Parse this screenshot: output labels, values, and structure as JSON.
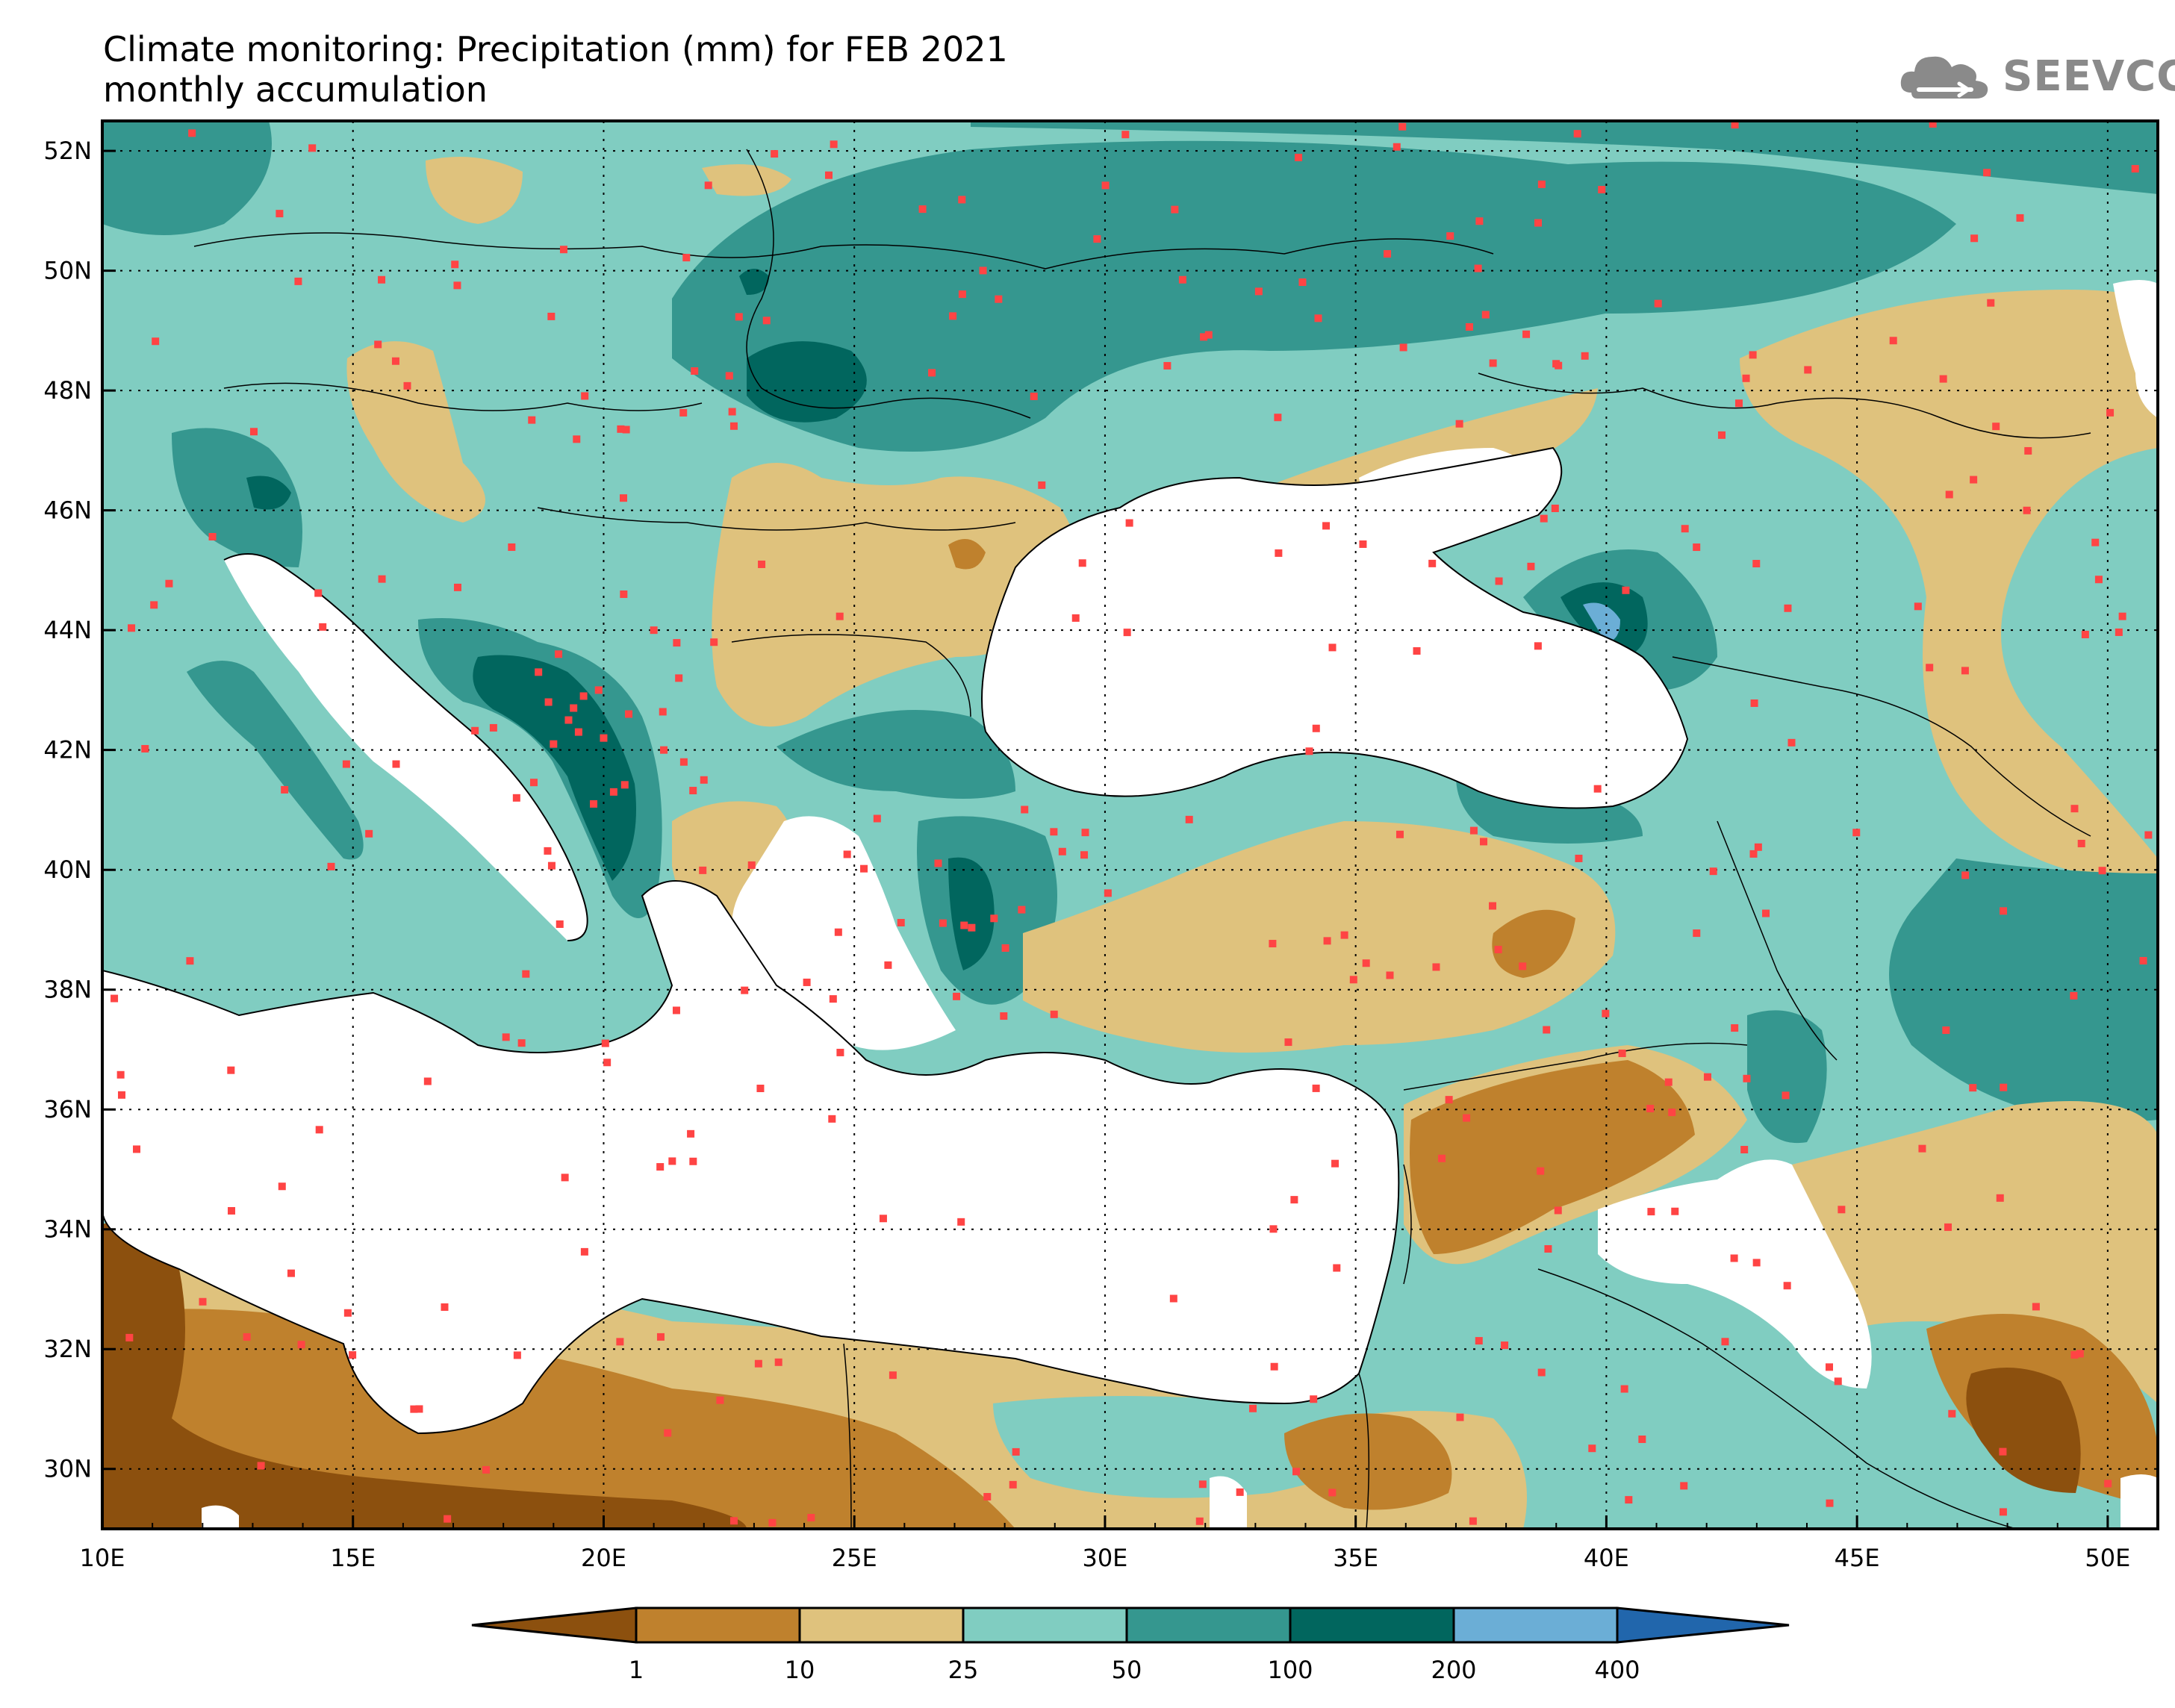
{
  "header": {
    "title_line1": "Climate monitoring: Precipitation (mm) for FEB 2021",
    "title_line2": "monthly accumulation"
  },
  "logo": {
    "text": "SEEVCCC",
    "icon": "cloud-icon",
    "color": "#8a8a8a"
  },
  "map": {
    "lon_range": [
      10,
      51
    ],
    "lat_range": [
      29,
      52.5
    ],
    "lon_labels": [
      "10E",
      "15E",
      "20E",
      "25E",
      "30E",
      "35E",
      "40E",
      "45E",
      "50E"
    ],
    "lat_labels": [
      "30N",
      "32N",
      "34N",
      "36N",
      "38N",
      "40N",
      "42N",
      "44N",
      "46N",
      "48N",
      "50N",
      "52N"
    ],
    "grid_lines": "dotted",
    "station_color": "#ff4444",
    "sea_color": "#ffffff"
  },
  "colorbar": {
    "labels": [
      "1",
      "10",
      "25",
      "50",
      "100",
      "200",
      "400"
    ],
    "colors": [
      "#8c500e",
      "#bf812d",
      "#dfc27d",
      "#80cdc1",
      "#35978f",
      "#01665e",
      "#6baed6",
      "#2166ac"
    ]
  }
}
